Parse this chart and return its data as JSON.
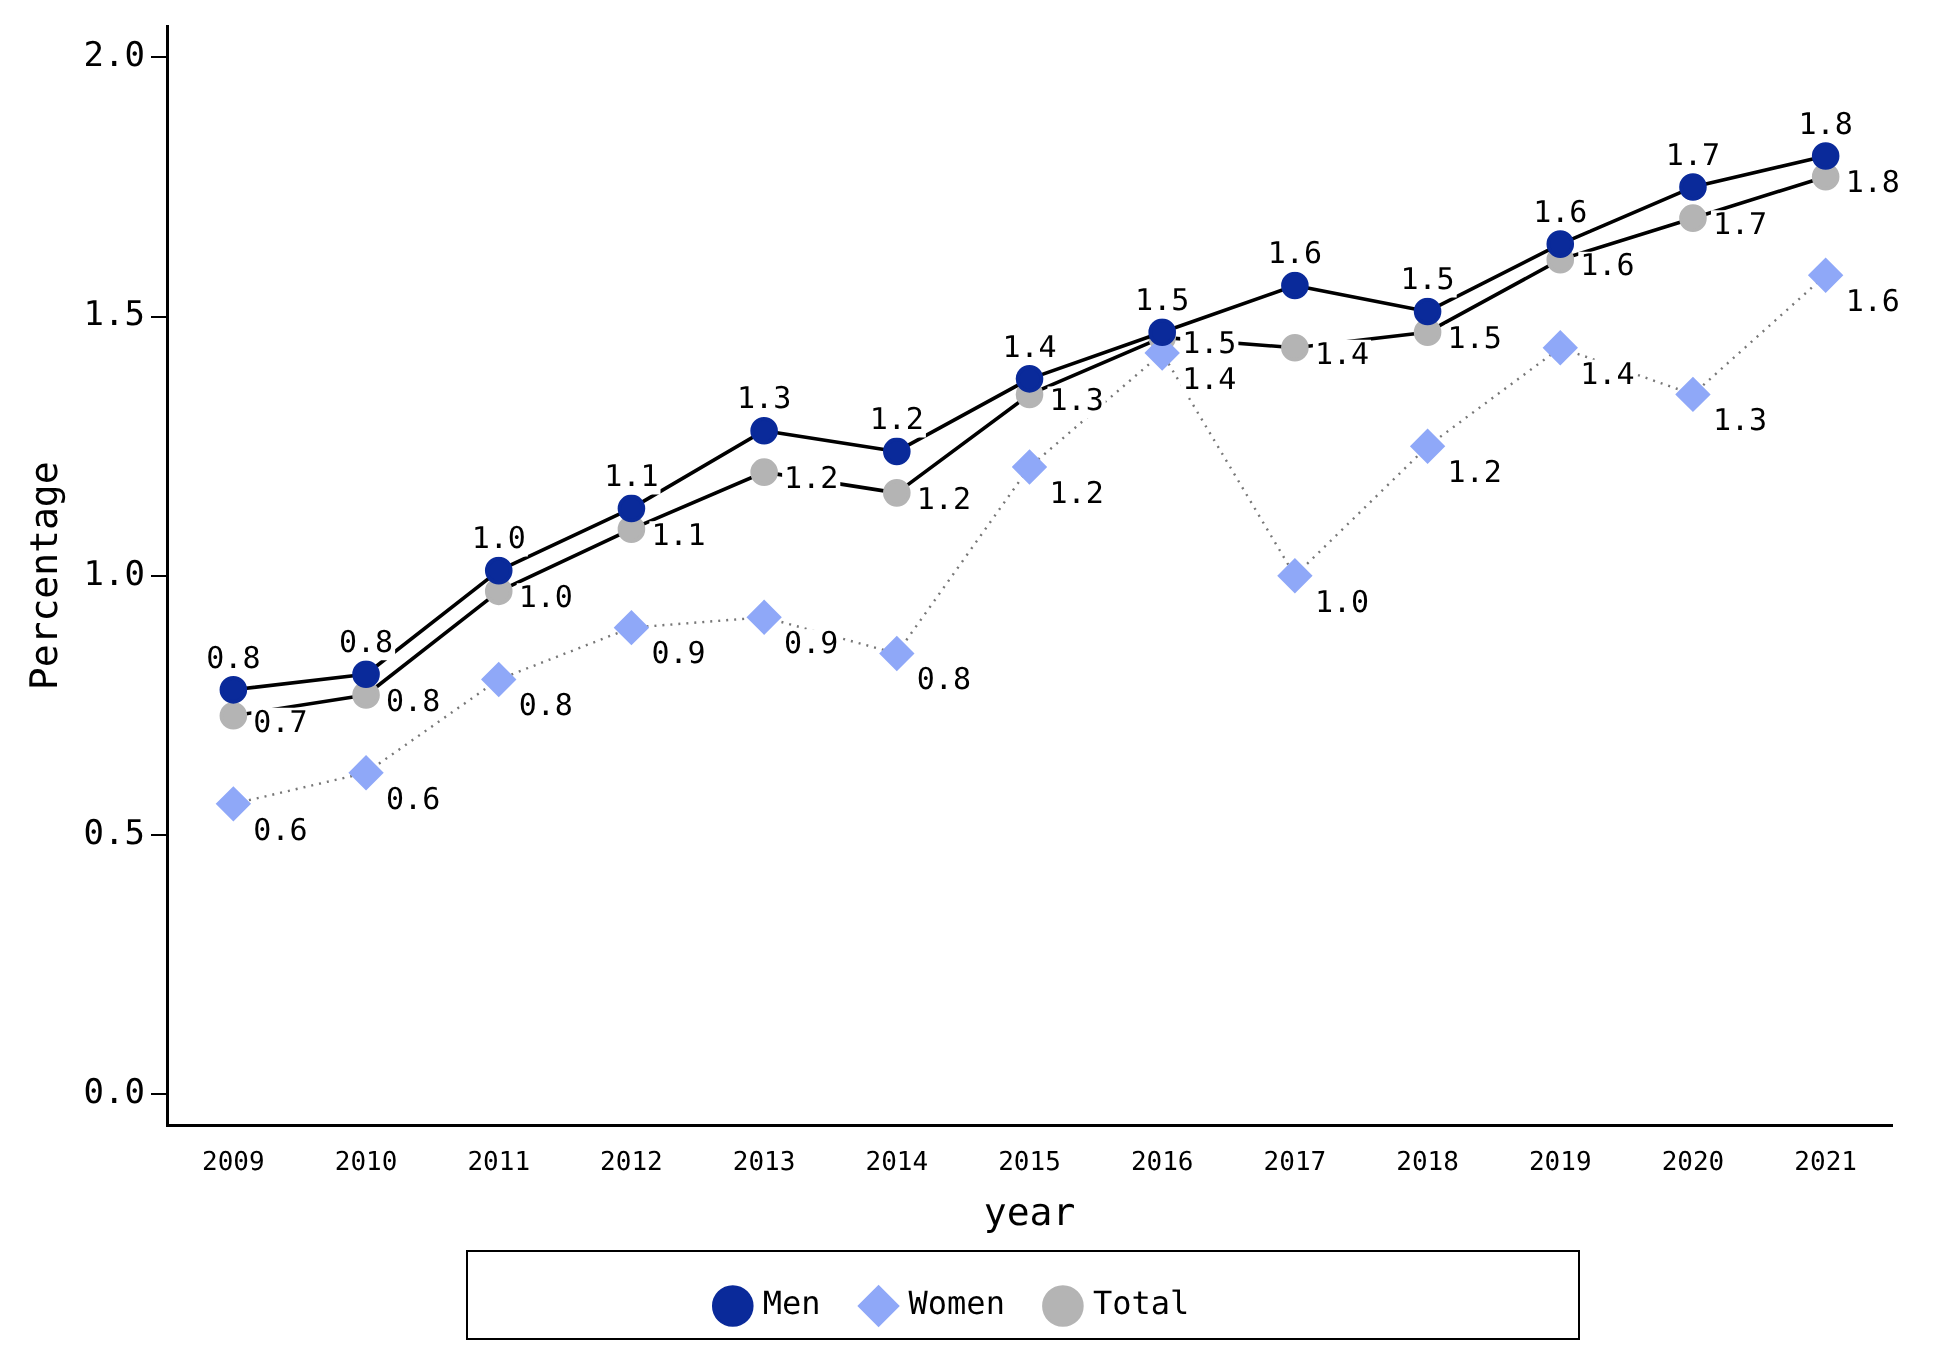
{
  "chart_data": {
    "type": "line",
    "xlabel": "year",
    "ylabel": "Percentage",
    "categories": [
      "2009",
      "2010",
      "2011",
      "2012",
      "2013",
      "2014",
      "2015",
      "2016",
      "2017",
      "2018",
      "2019",
      "2020",
      "2021"
    ],
    "ylim": [
      -0.06,
      2.06
    ],
    "yticks": [
      {
        "value": 0,
        "label": "0.0"
      },
      0.5,
      {
        "value": 1,
        "label": "1.0"
      },
      1.5,
      {
        "value": 2,
        "label": "2.0"
      }
    ],
    "grid": false,
    "legend": "bottom",
    "series": [
      {
        "name": "Men",
        "color": "#0a2a9a",
        "marker": "circle",
        "line_style": "solid",
        "values": [
          0.78,
          0.81,
          1.01,
          1.13,
          1.28,
          1.24,
          1.38,
          1.47,
          1.56,
          1.51,
          1.64,
          1.75,
          1.81
        ],
        "value_labels": [
          "0.8",
          "0.8",
          "1.0",
          "1.1",
          "1.3",
          "1.2",
          "1.4",
          "1.5",
          "1.6",
          "1.5",
          "1.6",
          "1.7",
          "1.8"
        ]
      },
      {
        "name": "Women",
        "color": "#8fa8f8",
        "marker": "diamond",
        "line_style": "dotted",
        "values": [
          0.56,
          0.62,
          0.8,
          0.9,
          0.92,
          0.85,
          1.21,
          1.43,
          1.0,
          1.25,
          1.44,
          1.35,
          1.58
        ],
        "value_labels": [
          "0.6",
          "0.6",
          "0.8",
          "0.9",
          "0.9",
          "0.8",
          "1.2",
          "1.4",
          "1.0",
          "1.2",
          "1.4",
          "1.3",
          "1.6"
        ]
      },
      {
        "name": "Total",
        "color": "#b4b4b4",
        "marker": "circle",
        "line_style": "solid",
        "values": [
          0.73,
          0.77,
          0.97,
          1.09,
          1.2,
          1.16,
          1.35,
          1.46,
          1.44,
          1.47,
          1.61,
          1.69,
          1.77
        ],
        "value_labels": [
          "0.7",
          "0.8",
          "1.0",
          "1.1",
          "1.2",
          "1.2",
          "1.3",
          "1.5",
          "1.4",
          "1.5",
          "1.6",
          "1.7",
          "1.8"
        ]
      }
    ]
  }
}
